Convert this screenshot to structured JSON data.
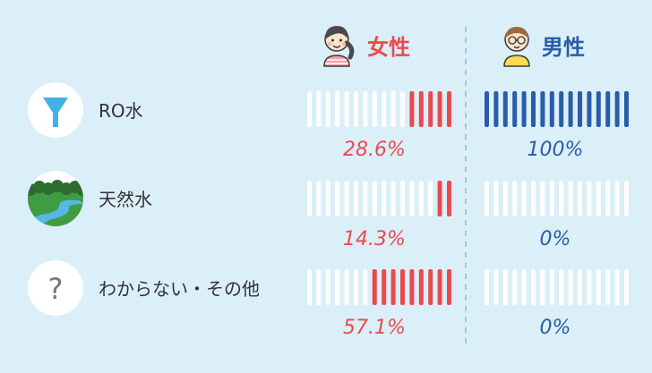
{
  "chart_data": {
    "type": "bar",
    "title": "",
    "xlabel": "",
    "ylabel": "",
    "total_segments": 16,
    "categories": [
      "RO水",
      "天然水",
      "わからない・その他"
    ],
    "category_icons": [
      "funnel-icon",
      "landscape-icon",
      "question-icon"
    ],
    "series": [
      {
        "name": "女性",
        "values": [
          28.6,
          14.3,
          57.1
        ],
        "labels": [
          "28.6%",
          "14.3%",
          "57.1%"
        ],
        "color": "#ea4a4f",
        "icon": "woman-avatar-icon"
      },
      {
        "name": "男性",
        "values": [
          100,
          0,
          0
        ],
        "labels": [
          "100%",
          "0%",
          "0%"
        ],
        "color": "#2a5ca8",
        "icon": "man-avatar-icon"
      }
    ]
  },
  "colors": {
    "background": "#dbeff8",
    "empty_segment": "#ffffff",
    "category_text": "#333333",
    "divider": "#9ecbe2",
    "funnel": "#3fb3e6"
  }
}
